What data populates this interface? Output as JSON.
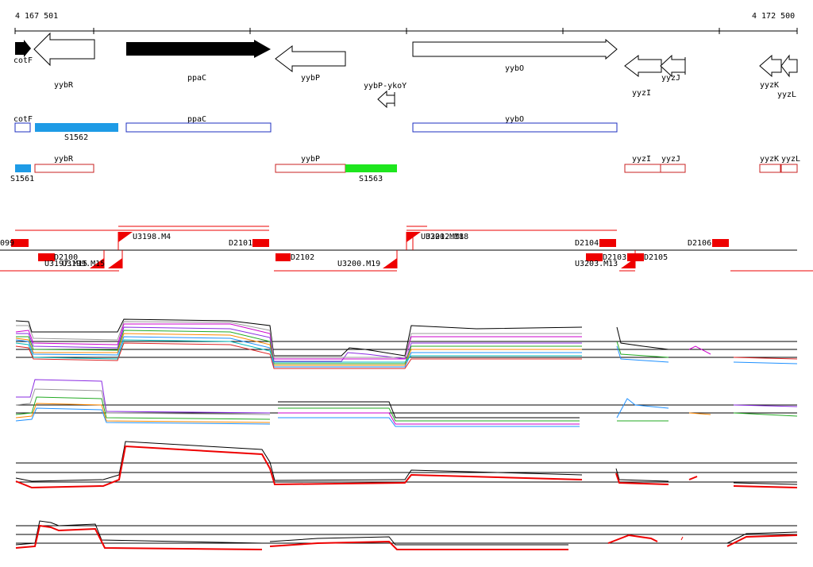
{
  "coords": {
    "start": "4 167 501",
    "end": "4 172 500"
  },
  "genes": {
    "cotF": "cotF",
    "yybR": "yybR",
    "ppaC": "ppaC",
    "yybP": "yybP",
    "yybP_ykoY": "yybP-ykoY",
    "yybO": "yybO",
    "yyzI": "yyzI",
    "yyzJ": "yyzJ",
    "yyzK": "yyzK",
    "yyzL": "yyzL"
  },
  "blue_track": {
    "cotF": "cotF",
    "S1562": "S1562",
    "ppaC": "ppaC",
    "yybO": "yybO"
  },
  "red_track": {
    "S1561": "S1561",
    "yybR": "yybR",
    "yybP": "yybP",
    "S1563": "S1563",
    "yyzI": "yyzI",
    "yyzJ": "yyzJ",
    "yyzK": "yyzK",
    "yyzL": "yyzL"
  },
  "segments": {
    "D2099": "099",
    "D2100": "D2100",
    "U3197": "U3197.M15",
    "U3199": "U3199.M15",
    "U3198": "U3198.M4",
    "D2101": "D2101",
    "D2102": "D2102",
    "U3200": "U3200.M19",
    "U3201": "U3201.M18",
    "U3202": "U3202.M18",
    "D2104": "D2104",
    "D2103": "D2103",
    "U3203": "U3203.M13",
    "D2105": "D2105",
    "D2106": "D2106"
  },
  "colors": {
    "blue_feature": "#1e9be6",
    "green_feature": "#1ee61e",
    "blue_outline": "#1e2fc0",
    "red_outline": "#c82020",
    "segment_red": "#ee0000"
  }
}
